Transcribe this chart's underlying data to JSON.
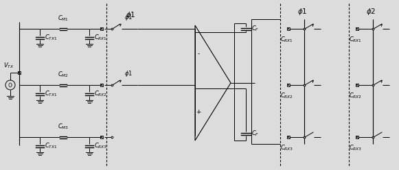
{
  "figsize": [
    5.81,
    2.48
  ],
  "dpi": 100,
  "bg_color": "#dcdcdc",
  "line_color": "#000000",
  "text_color": "#000000",
  "font_size": 6.5
}
